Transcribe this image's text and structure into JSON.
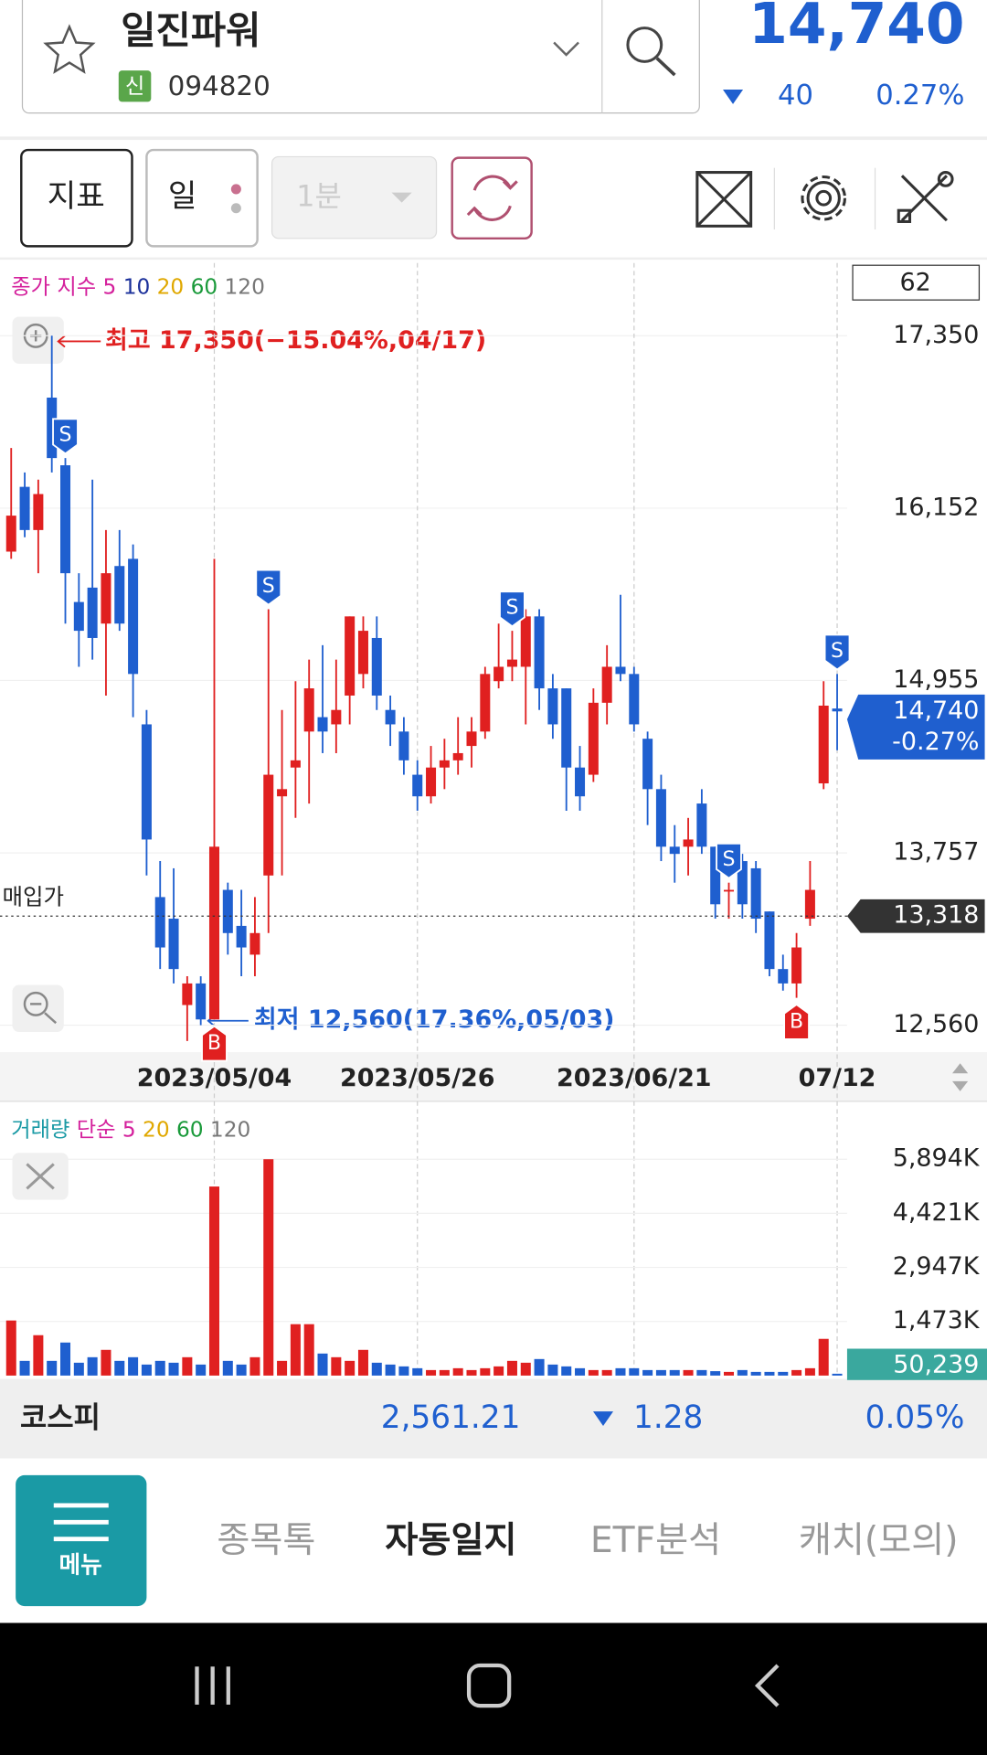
{
  "header": {
    "name": "일진파워",
    "badge": "신",
    "code": "094820",
    "price": "14,740",
    "change": "40",
    "change_rate": "0.27%"
  },
  "toolbar": {
    "indicator": "지표",
    "period": "일",
    "interval": "1분"
  },
  "chart_data": [
    {
      "type": "candlestick",
      "legend": {
        "title": "종가 지수",
        "periods": [
          {
            "label": "5",
            "color": "#d4209c"
          },
          {
            "label": "10",
            "color": "#1a2f9a"
          },
          {
            "label": "20",
            "color": "#e0a800"
          },
          {
            "label": "60",
            "color": "#1a9a3a"
          },
          {
            "label": "120",
            "color": "#777777"
          }
        ]
      },
      "up_color": "#e02020",
      "down_color": "#1f5fcf",
      "categories": [
        null,
        null,
        null,
        null,
        null,
        null,
        null,
        null,
        null,
        null,
        null,
        null,
        null,
        null,
        null,
        "2023/05/04",
        null,
        null,
        null,
        null,
        null,
        null,
        null,
        null,
        null,
        null,
        null,
        null,
        null,
        null,
        "2023/05/26",
        null,
        null,
        null,
        null,
        null,
        null,
        null,
        null,
        null,
        null,
        null,
        null,
        null,
        null,
        null,
        "2023/06/21",
        null,
        null,
        null,
        null,
        null,
        null,
        null,
        null,
        null,
        null,
        null,
        null,
        null,
        null,
        "07/12"
      ],
      "open": [
        15850,
        16300,
        16000,
        16920,
        16450,
        15500,
        15600,
        15350,
        15750,
        15800,
        14650,
        13450,
        13300,
        12700,
        12850,
        12600,
        13500,
        13250,
        13050,
        13600,
        14150,
        14350,
        14600,
        14700,
        14650,
        14850,
        15000,
        15250,
        14750,
        14600,
        14300,
        14150,
        14350,
        14400,
        14500,
        14600,
        14950,
        15050,
        15050,
        15400,
        14900,
        14900,
        14350,
        14300,
        14800,
        15050,
        15000,
        14550,
        14200,
        13800,
        13800,
        14100,
        13800,
        13500,
        13700,
        13650,
        13350,
        12950,
        12850,
        13300,
        14240,
        14760
      ],
      "high": [
        16570,
        16400,
        16350,
        17350,
        16500,
        15700,
        16350,
        16000,
        16000,
        15900,
        14750,
        13700,
        13650,
        12900,
        12900,
        15800,
        13550,
        13500,
        13450,
        15450,
        14750,
        14950,
        15100,
        15200,
        15100,
        15400,
        15400,
        15400,
        14850,
        14700,
        14400,
        14500,
        14550,
        14700,
        14700,
        15050,
        15350,
        15300,
        15450,
        15450,
        15000,
        14900,
        14500,
        14900,
        15200,
        15550,
        15050,
        14600,
        14300,
        13950,
        14000,
        14200,
        13800,
        13550,
        13750,
        13700,
        13350,
        13050,
        13200,
        13700,
        14950,
        15000
      ],
      "low": [
        15800,
        15950,
        15700,
        16400,
        15350,
        15050,
        15100,
        14850,
        15300,
        14700,
        13600,
        12950,
        12850,
        12450,
        12560,
        12600,
        13050,
        12900,
        12900,
        13200,
        13600,
        14000,
        14100,
        14450,
        14450,
        14650,
        14900,
        14750,
        14500,
        14300,
        14050,
        14100,
        14200,
        14300,
        14350,
        14550,
        14900,
        14950,
        14650,
        14750,
        14550,
        14050,
        14050,
        14250,
        14650,
        14950,
        14600,
        13950,
        13700,
        13550,
        13600,
        13750,
        13300,
        13300,
        13300,
        13200,
        12900,
        12800,
        12750,
        13250,
        14200,
        14470
      ],
      "close": [
        16100,
        16000,
        16250,
        16500,
        15700,
        15300,
        15250,
        15700,
        15350,
        15000,
        13850,
        13100,
        12950,
        12850,
        12600,
        13800,
        13200,
        13100,
        13200,
        14300,
        14200,
        14400,
        14900,
        14600,
        14750,
        15400,
        15300,
        14850,
        14650,
        14400,
        14150,
        14350,
        14400,
        14450,
        14600,
        15000,
        15050,
        15100,
        15400,
        14900,
        14650,
        14350,
        14150,
        14800,
        15050,
        15000,
        14650,
        14200,
        13800,
        13750,
        13850,
        13800,
        13400,
        13500,
        13400,
        13300,
        12950,
        12850,
        13100,
        13500,
        14780,
        14740
      ],
      "ylim": [
        12373,
        17855
      ],
      "yticks": [
        {
          "value": 17350,
          "label": "17,350"
        },
        {
          "value": 16152,
          "label": "16,152"
        },
        {
          "value": 14955,
          "label": "14,955"
        },
        {
          "value": 13757,
          "label": "13,757"
        },
        {
          "value": 12560,
          "label": "12,560"
        }
      ],
      "count_label": "62",
      "max_annotation": "최고 17,350(−15.04%,04/17)",
      "min_annotation": "최저 12,560(17.36%,05/03)",
      "current_price": {
        "value": 14740,
        "label": "14,740",
        "change_label": "-0.27%"
      },
      "purchase": {
        "label": "매입가",
        "value": 13318,
        "value_label": "13,318"
      },
      "signals": [
        {
          "index": 4,
          "label": "S"
        },
        {
          "index": 19,
          "label": "S"
        },
        {
          "index": 37,
          "label": "S"
        },
        {
          "index": 53,
          "label": "S"
        },
        {
          "index": 61,
          "label": "S"
        },
        {
          "index": 15,
          "label": "B"
        },
        {
          "index": 58,
          "label": "B"
        }
      ]
    },
    {
      "type": "bar",
      "legend": {
        "title": "거래량",
        "method": "단순",
        "periods": [
          {
            "label": "5",
            "color": "#d4209c"
          },
          {
            "label": "20",
            "color": "#e0a800"
          },
          {
            "label": "60",
            "color": "#1a9a3a"
          },
          {
            "label": "120",
            "color": "#777777"
          }
        ]
      },
      "values": [
        1500,
        400,
        1100,
        400,
        900,
        350,
        500,
        700,
        400,
        500,
        300,
        400,
        350,
        500,
        300,
        5150,
        400,
        300,
        500,
        5894,
        400,
        1400,
        1400,
        600,
        500,
        400,
        700,
        350,
        300,
        250,
        200,
        150,
        150,
        200,
        150,
        200,
        250,
        400,
        350,
        450,
        300,
        250,
        200,
        150,
        150,
        200,
        200,
        150,
        150,
        150,
        150,
        150,
        120,
        100,
        150,
        100,
        100,
        100,
        150,
        200,
        1000,
        50
      ],
      "ylim": [
        0,
        7440
      ],
      "yticks": [
        {
          "value": 1473,
          "label": "1,473K"
        },
        {
          "value": 2947,
          "label": "2,947K"
        },
        {
          "value": 4421,
          "label": "4,421K"
        },
        {
          "value": 5894,
          "label": "5,894K"
        }
      ],
      "last_value": {
        "value": 50.239,
        "label": "50,239"
      }
    }
  ],
  "market": {
    "name": "코스피",
    "value": "2,561.21",
    "change": "1.28",
    "rate": "0.05%"
  },
  "nav": {
    "menu": "메뉴",
    "items": [
      "종목톡",
      "자동일지",
      "ETF분석",
      "캐치(모의)"
    ]
  }
}
